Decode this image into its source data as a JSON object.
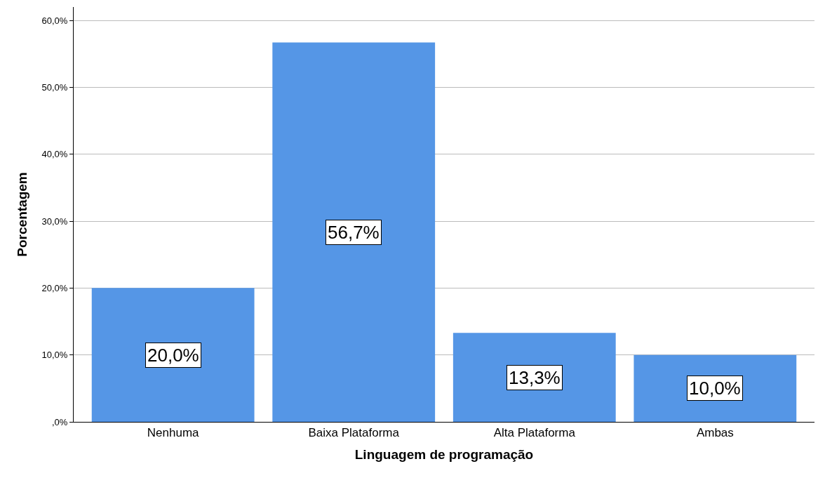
{
  "chart_data": {
    "type": "bar",
    "xlabel": "Linguagem de programação",
    "ylabel": "Porcentagem",
    "categories": [
      "Nenhuma",
      "Baixa Plataforma",
      "Alta Plataforma",
      "Ambas"
    ],
    "values": [
      20.0,
      56.7,
      13.3,
      10.0
    ],
    "color": "#5596e6",
    "value_labels": [
      "20,0%",
      "56,7%",
      "13,3%",
      "10,0%"
    ],
    "ylim": [
      0,
      62
    ],
    "yticks": [
      {
        "value": 0,
        "label": ",0%"
      },
      {
        "value": 10,
        "label": "10,0%"
      },
      {
        "value": 20,
        "label": "20,0%"
      },
      {
        "value": 30,
        "label": "30,0%"
      },
      {
        "value": 40,
        "label": "40,0%"
      },
      {
        "value": 50,
        "label": "50,0%"
      },
      {
        "value": 60,
        "label": "60,0%"
      }
    ],
    "grid": "y",
    "legend": false
  }
}
